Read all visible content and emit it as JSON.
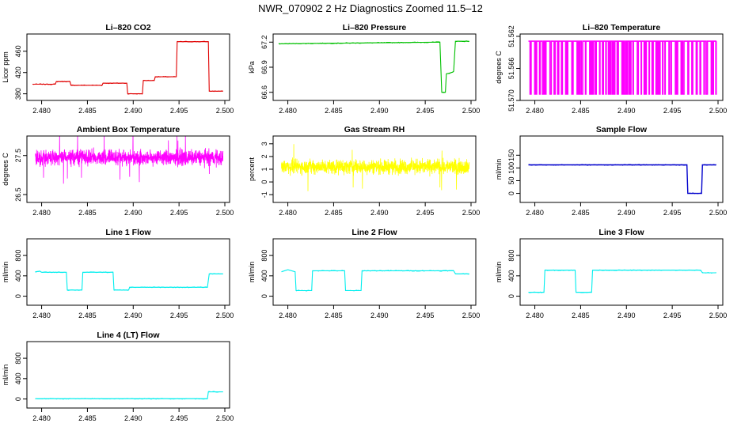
{
  "figure": {
    "title": "NWR_070902  2 Hz Diagnostics Zoomed 11.5–12"
  },
  "chart_data": [
    {
      "id": "co2",
      "type": "line",
      "title": "Li–820 CO2",
      "ylabel": "Licor ppm",
      "color": "#e00000",
      "xlim": [
        2.479,
        2.5
      ],
      "ylim": [
        375,
        485
      ],
      "xticks": [
        "2.480",
        "2.485",
        "2.490",
        "2.495",
        "2.500"
      ],
      "yticks": [
        "380",
        "420",
        "460"
      ],
      "x": [
        2.479,
        2.4815,
        2.4816,
        2.4831,
        2.4832,
        2.4866,
        2.4867,
        2.4893,
        2.4894,
        2.491,
        2.4911,
        2.4923,
        2.4924,
        2.4947,
        2.4948,
        2.4982,
        2.4983,
        2.4998
      ],
      "y": [
        398,
        398,
        403,
        403,
        396,
        396,
        400,
        400,
        380,
        380,
        405,
        405,
        412,
        412,
        478,
        478,
        385,
        385
      ]
    },
    {
      "id": "pressure",
      "type": "line",
      "title": "Li–820 Pressure",
      "ylabel": "kPa",
      "color": "#00c000",
      "xlim": [
        2.479,
        2.5
      ],
      "ylim": [
        66.55,
        67.25
      ],
      "xticks": [
        "2.480",
        "2.485",
        "2.490",
        "2.495",
        "2.500"
      ],
      "yticks": [
        "66.6",
        "66.9",
        "67.2"
      ],
      "x": [
        2.479,
        2.4966,
        2.4968,
        2.4972,
        2.4973,
        2.498,
        2.4981,
        2.4983,
        2.4998
      ],
      "y": [
        67.18,
        67.2,
        66.6,
        66.6,
        66.82,
        66.84,
        66.85,
        67.21,
        67.21
      ]
    },
    {
      "id": "li-temp",
      "type": "line",
      "title": "Li–820 Temperature",
      "ylabel": "degrees C",
      "color": "#ff00ff",
      "xlim": [
        2.479,
        2.5
      ],
      "ylim": [
        51.5695,
        51.5622
      ],
      "xticks": [
        "2.480",
        "2.485",
        "2.490",
        "2.495",
        "2.500"
      ],
      "yticks": [
        "51.570",
        "51.566",
        "51.562"
      ]
    },
    {
      "id": "ambient",
      "type": "line",
      "title": "Ambient Box Temperature",
      "ylabel": "degrees C",
      "color": "#ff00ff",
      "xlim": [
        2.479,
        2.5
      ],
      "ylim": [
        26.4,
        27.9
      ],
      "xticks": [
        "2.480",
        "2.485",
        "2.490",
        "2.495",
        "2.500"
      ],
      "yticks": [
        "26.5",
        "27.5"
      ]
    },
    {
      "id": "rh",
      "type": "line",
      "title": "Gas Stream RH",
      "ylabel": "percent",
      "color": "#ffff00",
      "xlim": [
        2.479,
        2.5
      ],
      "ylim": [
        -1.3,
        3.3
      ],
      "xticks": [
        "2.480",
        "2.485",
        "2.490",
        "2.495",
        "2.500"
      ],
      "yticks": [
        "-1",
        "0",
        "1",
        "2",
        "3"
      ]
    },
    {
      "id": "sample-flow",
      "type": "line",
      "title": "Sample Flow",
      "ylabel": "ml/min",
      "color": "#0000cc",
      "xlim": [
        2.479,
        2.5
      ],
      "ylim": [
        -20,
        210
      ],
      "xticks": [
        "2.480",
        "2.485",
        "2.490",
        "2.495",
        "2.500"
      ],
      "yticks": [
        "0",
        "50",
        "100",
        "150"
      ],
      "x": [
        2.4793,
        2.4966,
        2.4967,
        2.4982,
        2.4983,
        2.4998
      ],
      "y": [
        112,
        112,
        0,
        0,
        112,
        112
      ]
    },
    {
      "id": "line1",
      "type": "line",
      "title": "Line 1 Flow",
      "ylabel": "ml/min",
      "color": "#00eeee",
      "xlim": [
        2.479,
        2.5
      ],
      "ylim": [
        -100,
        1050
      ],
      "xticks": [
        "2.480",
        "2.485",
        "2.490",
        "2.495",
        "2.500"
      ],
      "yticks": [
        "0",
        "400",
        "800"
      ],
      "x": [
        2.4793,
        2.4798,
        2.48,
        2.4827,
        2.4828,
        2.4844,
        2.4845,
        2.4878,
        2.4879,
        2.4895,
        2.4896,
        2.4981,
        2.4983,
        2.4998
      ],
      "y": [
        480,
        490,
        470,
        470,
        120,
        120,
        470,
        470,
        120,
        120,
        175,
        175,
        440,
        440
      ]
    },
    {
      "id": "line2",
      "type": "line",
      "title": "Line 2 Flow",
      "ylabel": "ml/min",
      "color": "#00eeee",
      "xlim": [
        2.479,
        2.5
      ],
      "ylim": [
        -100,
        1050
      ],
      "xticks": [
        "2.480",
        "2.485",
        "2.490",
        "2.495",
        "2.500"
      ],
      "yticks": [
        "0",
        "400",
        "800"
      ],
      "x": [
        2.4793,
        2.48,
        2.4808,
        2.4809,
        2.4826,
        2.4827,
        2.4862,
        2.4863,
        2.488,
        2.4881,
        2.4981,
        2.4983,
        2.4998
      ],
      "y": [
        480,
        520,
        480,
        110,
        110,
        500,
        500,
        110,
        110,
        500,
        500,
        440,
        440
      ]
    },
    {
      "id": "line3",
      "type": "line",
      "title": "Line 3 Flow",
      "ylabel": "ml/min",
      "color": "#00eeee",
      "xlim": [
        2.479,
        2.5
      ],
      "ylim": [
        -100,
        1050
      ],
      "xticks": [
        "2.480",
        "2.485",
        "2.490",
        "2.495",
        "2.500"
      ],
      "yticks": [
        "0",
        "400",
        "800"
      ],
      "x": [
        2.4793,
        2.481,
        2.4811,
        2.4844,
        2.4845,
        2.4862,
        2.4863,
        2.4981,
        2.4983,
        2.4998
      ],
      "y": [
        75,
        75,
        510,
        510,
        75,
        75,
        510,
        510,
        460,
        460
      ]
    },
    {
      "id": "line4",
      "type": "line",
      "title": "Line 4 (LT) Flow",
      "ylabel": "ml/min",
      "color": "#00eeee",
      "xlim": [
        2.479,
        2.5
      ],
      "ylim": [
        -100,
        1050
      ],
      "xticks": [
        "2.480",
        "2.485",
        "2.490",
        "2.495",
        "2.500"
      ],
      "yticks": [
        "0",
        "400",
        "800"
      ],
      "x": [
        2.4793,
        2.4981,
        2.4982,
        2.4998
      ],
      "y": [
        5,
        5,
        140,
        140
      ]
    }
  ]
}
